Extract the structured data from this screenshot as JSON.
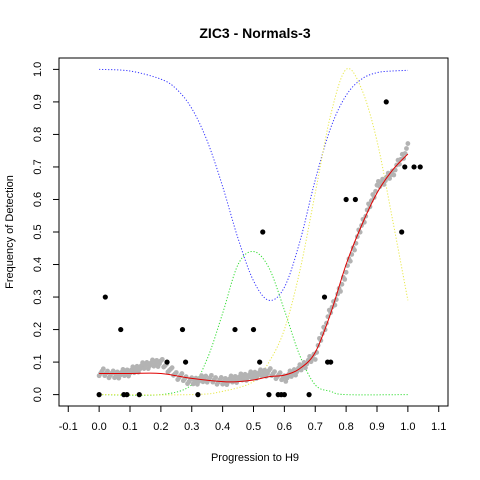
{
  "chart_data": {
    "type": "scatter",
    "title": "ZIC3 - Normals-3",
    "xlabel": "Progression to H9",
    "ylabel": "Frequency of Detection",
    "xlim": [
      -0.13,
      1.13
    ],
    "ylim": [
      -0.035,
      1.035
    ],
    "xticks": [
      "-0.1",
      "0.0",
      "0.1",
      "0.2",
      "0.3",
      "0.4",
      "0.5",
      "0.6",
      "0.7",
      "0.8",
      "0.9",
      "1.0",
      "1.1"
    ],
    "yticks": [
      "0.0",
      "0.1",
      "0.2",
      "0.3",
      "0.4",
      "0.5",
      "0.6",
      "0.7",
      "0.8",
      "0.9",
      "1.0"
    ],
    "grid": false,
    "legend": "none",
    "colors": {
      "points": "#000000",
      "smoothed": "#b3b3b3",
      "fit": "#e00000",
      "blue_curve": "#3333ff",
      "green_curve": "#33dd33",
      "yellow_curve": "#e8e84a"
    },
    "series": [
      {
        "kind": "points",
        "x": [
          0.0,
          0.02,
          0.07,
          0.08,
          0.09,
          0.13,
          0.22,
          0.27,
          0.28,
          0.32,
          0.44,
          0.5,
          0.52,
          0.53,
          0.55,
          0.58,
          0.59,
          0.6,
          0.68,
          0.73,
          0.74,
          0.75,
          0.8,
          0.83,
          0.93,
          0.98,
          0.99,
          1.02,
          1.04
        ],
        "y": [
          0.0,
          0.3,
          0.2,
          0.0,
          0.0,
          0.0,
          0.1,
          0.2,
          0.1,
          0.0,
          0.2,
          0.2,
          0.1,
          0.5,
          0.0,
          0.0,
          0.0,
          0.0,
          0.0,
          0.3,
          0.1,
          0.1,
          0.6,
          0.6,
          0.9,
          0.5,
          0.7,
          0.7,
          0.7
        ]
      },
      {
        "kind": "smoothed",
        "x": [
          0.0,
          0.05,
          0.1,
          0.15,
          0.2,
          0.25,
          0.3,
          0.35,
          0.4,
          0.45,
          0.5,
          0.55,
          0.6,
          0.65,
          0.7,
          0.72,
          0.75,
          0.78,
          0.8,
          0.85,
          0.9,
          0.95,
          1.0
        ],
        "y": [
          0.07,
          0.06,
          0.07,
          0.09,
          0.1,
          0.06,
          0.04,
          0.05,
          0.04,
          0.05,
          0.06,
          0.07,
          0.05,
          0.08,
          0.12,
          0.18,
          0.26,
          0.32,
          0.38,
          0.52,
          0.64,
          0.68,
          0.76
        ]
      },
      {
        "kind": "fit",
        "x": [
          0.0,
          0.1,
          0.2,
          0.3,
          0.4,
          0.45,
          0.5,
          0.55,
          0.6,
          0.65,
          0.7,
          0.75,
          0.8,
          0.85,
          0.9,
          0.95,
          1.0
        ],
        "y": [
          0.065,
          0.065,
          0.065,
          0.05,
          0.04,
          0.04,
          0.045,
          0.055,
          0.06,
          0.08,
          0.13,
          0.25,
          0.4,
          0.52,
          0.62,
          0.69,
          0.74
        ]
      },
      {
        "kind": "blue_curve",
        "x": [
          0.0,
          0.1,
          0.2,
          0.25,
          0.3,
          0.35,
          0.4,
          0.45,
          0.5,
          0.55,
          0.6,
          0.65,
          0.7,
          0.75,
          0.8,
          0.85,
          0.9,
          0.95,
          1.0
        ],
        "y": [
          1.0,
          0.995,
          0.97,
          0.94,
          0.88,
          0.78,
          0.64,
          0.48,
          0.35,
          0.29,
          0.33,
          0.47,
          0.66,
          0.82,
          0.92,
          0.97,
          0.99,
          0.995,
          0.997
        ]
      },
      {
        "kind": "green_curve",
        "x": [
          0.0,
          0.2,
          0.3,
          0.35,
          0.4,
          0.45,
          0.5,
          0.55,
          0.6,
          0.65,
          0.7,
          0.75,
          0.8,
          1.0
        ],
        "y": [
          0.0,
          0.0,
          0.03,
          0.11,
          0.25,
          0.4,
          0.44,
          0.39,
          0.26,
          0.12,
          0.03,
          0.01,
          0.0,
          0.0
        ]
      },
      {
        "kind": "yellow_curve",
        "x": [
          0.0,
          0.3,
          0.4,
          0.5,
          0.55,
          0.6,
          0.65,
          0.7,
          0.75,
          0.8,
          0.85,
          0.9,
          0.95,
          1.0
        ],
        "y": [
          0.0,
          0.0,
          0.01,
          0.04,
          0.1,
          0.2,
          0.38,
          0.62,
          0.86,
          1.0,
          0.94,
          0.78,
          0.54,
          0.29
        ]
      }
    ]
  }
}
